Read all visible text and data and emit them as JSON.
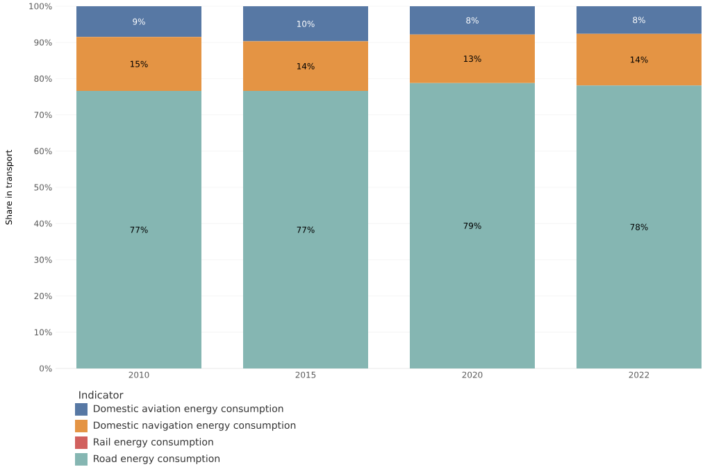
{
  "chart_data": {
    "type": "bar",
    "stacked": true,
    "ylabel": "Share in transport",
    "legend_title": "Indicator",
    "categories": [
      "2010",
      "2015",
      "2020",
      "2022"
    ],
    "series": [
      {
        "name": "Road energy consumption",
        "color": "#85b6b2",
        "values": [
          76.6,
          76.6,
          78.8,
          78.1
        ],
        "value_labels": [
          "77%",
          "77%",
          "79%",
          "78%"
        ]
      },
      {
        "name": "Rail energy consumption",
        "color": "#d1605e",
        "values": [
          0,
          0,
          0,
          0
        ]
      },
      {
        "name": "Domestic navigation energy consumption",
        "color": "#e49444",
        "values": [
          14.9,
          13.7,
          13.4,
          14.3
        ],
        "value_labels": [
          "15%",
          "14%",
          "13%",
          "14%"
        ]
      },
      {
        "name": "Domestic aviation energy consumption",
        "color": "#5778a4",
        "values": [
          8.5,
          9.7,
          7.8,
          7.6
        ],
        "value_labels": [
          "9%",
          "10%",
          "8%",
          "8%"
        ]
      }
    ],
    "ylim": [
      0,
      100
    ],
    "yticks": [
      {
        "value": 0,
        "label": "0%"
      },
      {
        "value": 10,
        "label": "10%"
      },
      {
        "value": 20,
        "label": "20%"
      },
      {
        "value": 30,
        "label": "30%"
      },
      {
        "value": 40,
        "label": "40%"
      },
      {
        "value": 50,
        "label": "50%"
      },
      {
        "value": 60,
        "label": "60%"
      },
      {
        "value": 70,
        "label": "70%"
      },
      {
        "value": 80,
        "label": "80%"
      },
      {
        "value": 90,
        "label": "90%"
      },
      {
        "value": 100,
        "label": "100%"
      }
    ],
    "grid": "y",
    "legend": "bottom"
  }
}
